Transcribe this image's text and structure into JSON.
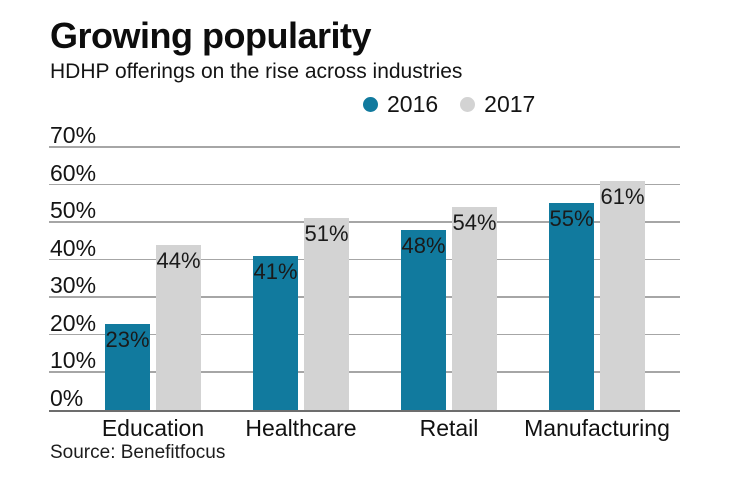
{
  "source_note": "Source: Benefitfocus",
  "colors": {
    "series_2016": "#117a9e",
    "series_2017": "#d3d3d3",
    "grid": "#a6a6a6",
    "axis": "#6d6d6d",
    "text": "#141414"
  },
  "chart_data": {
    "type": "bar",
    "title": "Growing popularity",
    "subtitle": "HDHP offerings on the rise across industries",
    "xlabel": "",
    "ylabel": "",
    "categories": [
      "Education",
      "Healthcare",
      "Retail",
      "Manufacturing"
    ],
    "series": [
      {
        "name": "2016",
        "color_key": "series_2016",
        "values": [
          23,
          41,
          48,
          55
        ]
      },
      {
        "name": "2017",
        "color_key": "series_2017",
        "values": [
          44,
          51,
          54,
          61
        ]
      }
    ],
    "value_label_suffix": "%",
    "ylim": [
      0,
      70
    ],
    "yticks": [
      {
        "v": 70,
        "label": "70%"
      },
      {
        "v": 60,
        "label": "60%"
      },
      {
        "v": 50,
        "label": "50%"
      },
      {
        "v": 40,
        "label": "40%"
      },
      {
        "v": 30,
        "label": "30%"
      },
      {
        "v": 20,
        "label": "20%"
      },
      {
        "v": 10,
        "label": "10%"
      },
      {
        "v": 0,
        "label": "0%"
      }
    ],
    "grid": true,
    "legend_position": "top-center"
  }
}
